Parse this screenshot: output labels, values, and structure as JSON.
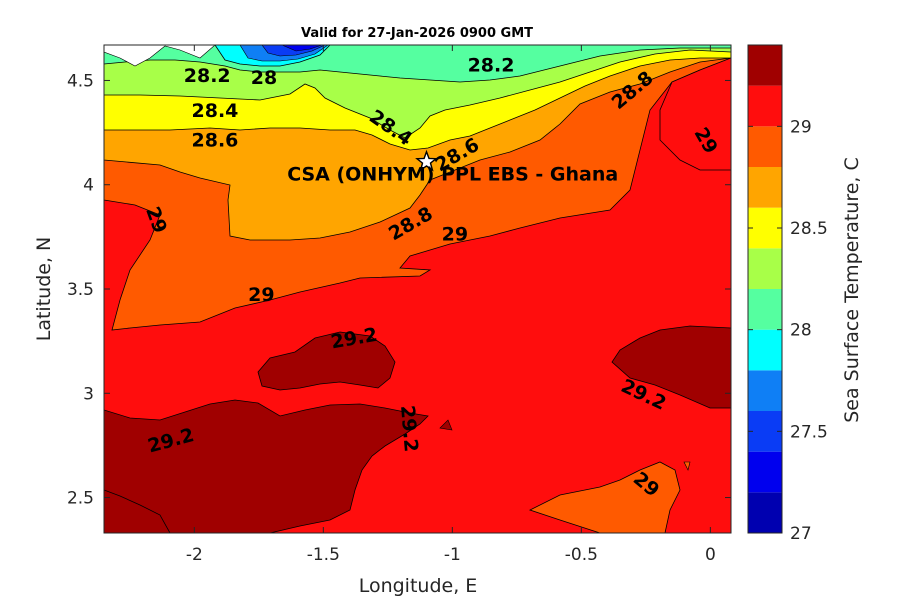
{
  "chart_data": {
    "type": "heatmap",
    "title": "Valid for 27-Jan-2026 0900 GMT",
    "xlabel": "Longitude, E",
    "ylabel": "Latitude, N",
    "colorbar_label": "Sea Surface Temperature, C",
    "xlim": [
      -2.35,
      0.08
    ],
    "ylim": [
      2.33,
      4.67
    ],
    "xticks": [
      "-2",
      "-1.5",
      "-1",
      "-0.5",
      "0"
    ],
    "xtick_values": [
      -2,
      -1.5,
      -1,
      -0.5,
      0
    ],
    "yticks": [
      "4.5",
      "4",
      "3.5",
      "3",
      "2.5"
    ],
    "ytick_values": [
      4.5,
      4,
      3.5,
      3,
      2.5
    ],
    "colorbar": {
      "range": [
        27,
        29.4
      ],
      "ticks": [
        "29",
        "28.5",
        "28",
        "27.5",
        "27"
      ],
      "tick_values": [
        29,
        28.5,
        28,
        27.5,
        27
      ],
      "levels": [
        {
          "from": 27.0,
          "to": 27.2,
          "color": "#0000b0"
        },
        {
          "from": 27.2,
          "to": 27.4,
          "color": "#0000ee"
        },
        {
          "from": 27.4,
          "to": 27.6,
          "color": "#0a3cf5"
        },
        {
          "from": 27.6,
          "to": 27.8,
          "color": "#0f7ff5"
        },
        {
          "from": 27.8,
          "to": 28.0,
          "color": "#00ffff"
        },
        {
          "from": 28.0,
          "to": 28.2,
          "color": "#55ffa0"
        },
        {
          "from": 28.2,
          "to": 28.4,
          "color": "#a8ff48"
        },
        {
          "from": 28.4,
          "to": 28.6,
          "color": "#ffff00"
        },
        {
          "from": 28.6,
          "to": 28.8,
          "color": "#ffa500"
        },
        {
          "from": 28.8,
          "to": 29.0,
          "color": "#ff5a00"
        },
        {
          "from": 29.0,
          "to": 29.2,
          "color": "#ff0d0d"
        },
        {
          "from": 29.2,
          "to": 29.4,
          "color": "#a00000"
        }
      ]
    },
    "contour_labels": [
      {
        "text": "28.2",
        "lon": -1.95,
        "lat": 4.52,
        "rot": 0
      },
      {
        "text": "28",
        "lon": -1.73,
        "lat": 4.51,
        "rot": 0
      },
      {
        "text": "28.2",
        "lon": -0.85,
        "lat": 4.57,
        "rot": 0
      },
      {
        "text": "28.4",
        "lon": -1.92,
        "lat": 4.35,
        "rot": 0
      },
      {
        "text": "28.6",
        "lon": -1.92,
        "lat": 4.21,
        "rot": 0
      },
      {
        "text": "28.4",
        "lon": -1.24,
        "lat": 4.27,
        "rot": 35
      },
      {
        "text": "28.6",
        "lon": -0.98,
        "lat": 4.14,
        "rot": -30
      },
      {
        "text": "28.8",
        "lon": -0.3,
        "lat": 4.45,
        "rot": -40
      },
      {
        "text": "29",
        "lon": -0.02,
        "lat": 4.21,
        "rot": 60
      },
      {
        "text": "29",
        "lon": -2.15,
        "lat": 3.83,
        "rot": 70
      },
      {
        "text": "28.8",
        "lon": -1.16,
        "lat": 3.81,
        "rot": -30
      },
      {
        "text": "29",
        "lon": -0.99,
        "lat": 3.76,
        "rot": 0
      },
      {
        "text": "29",
        "lon": -1.74,
        "lat": 3.47,
        "rot": 0
      },
      {
        "text": "29.2",
        "lon": -1.38,
        "lat": 3.26,
        "rot": -10
      },
      {
        "text": "29.2",
        "lon": -0.26,
        "lat": 2.99,
        "rot": 25
      },
      {
        "text": "29.2",
        "lon": -2.09,
        "lat": 2.77,
        "rot": -15
      },
      {
        "text": "29.2",
        "lon": -1.17,
        "lat": 2.83,
        "rot": 85
      },
      {
        "text": "29",
        "lon": -0.25,
        "lat": 2.56,
        "rot": 40
      }
    ],
    "site": {
      "label": "CSA (ONHYM) PPL EBS  - Ghana",
      "lon": -1.1,
      "lat": 4.11,
      "label_lon": -1.64,
      "label_lat": 4.02
    }
  }
}
